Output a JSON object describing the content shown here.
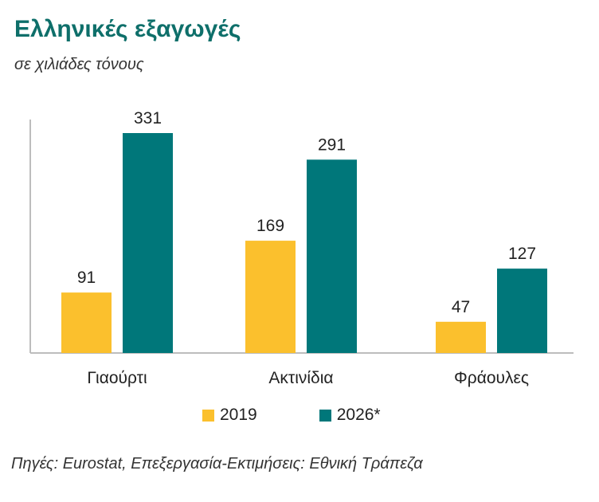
{
  "header": {
    "title": "Ελληνικές εξαγωγές",
    "subtitle": "σε χιλιάδες τόνους"
  },
  "source": "Πηγές: Eurostat, Επεξεργασία-Εκτιμήσεις: Εθνική Τράπεζα",
  "colors": {
    "series_2019": "#fbc02d",
    "series_2026": "#00777a",
    "axis": "#bdbdbd",
    "title": "#0e6f6a"
  },
  "chart_data": {
    "type": "bar",
    "categories": [
      "Γιαούρτι",
      "Ακτινίδια",
      "Φράουλες"
    ],
    "series": [
      {
        "name": "2019",
        "values": [
          91,
          169,
          47
        ]
      },
      {
        "name": "2026*",
        "values": [
          331,
          291,
          127
        ]
      }
    ],
    "title": "Ελληνικές εξαγωγές",
    "subtitle": "σε χιλιάδες τόνους",
    "xlabel": "",
    "ylabel": "",
    "ylim": [
      0,
      350
    ],
    "grid": false,
    "legend": "bottom"
  }
}
